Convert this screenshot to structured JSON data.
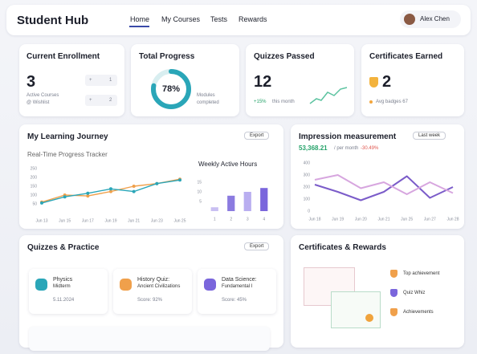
{
  "header": {
    "title": "Student Hub",
    "nav": [
      "Home",
      "My Courses",
      "Tests",
      "Rewards"
    ],
    "user": "Alex Chen"
  },
  "stats": {
    "enrollment": {
      "title": "Current Enrollment",
      "value": 3,
      "caption": [
        "Active Courses",
        "@ Wishlist"
      ],
      "badges": [
        {
          "sign": "+",
          "value": 1
        },
        {
          "sign": "+",
          "value": 2
        }
      ]
    },
    "progress": {
      "title": "Total Progress",
      "value": 78,
      "label": "78%",
      "caption": [
        "Modules",
        "completed"
      ]
    },
    "quizzes": {
      "title": "Quizzes Passed",
      "value": 12,
      "change": "+15%",
      "caption": "this month"
    },
    "certificates": {
      "title": "Certificates Earned",
      "value": 2,
      "caption": "Avg badges 67"
    }
  },
  "learning": {
    "title": "My Learning Journey",
    "button": "Export"
  },
  "impression": {
    "title": "Impression measurement",
    "total": "53,368.21",
    "period": "/ per month",
    "change": "-30.49%",
    "button": "Last week"
  },
  "quizzes": {
    "title": "Quizzes & Practice",
    "button": "Export",
    "items": [
      {
        "title": [
          "Physics",
          "Midterm"
        ],
        "detail": "5.11.2024"
      },
      {
        "title": [
          "History Quiz:",
          "Ancient Civilizations"
        ],
        "detail": "Score: 92%"
      },
      {
        "title": [
          "Data Science:",
          "Fundamental I"
        ],
        "detail": "Score: 45%"
      }
    ]
  },
  "rewards": {
    "title": "Certificates & Rewards",
    "items": [
      "Top achievement",
      "Quiz Whiz",
      "Achievements"
    ]
  },
  "chart_data": [
    {
      "type": "line",
      "title": "Real-Time Progress Tracker",
      "categories": [
        "Jun 13",
        "Jun 15",
        "Jun 17",
        "Jun 19",
        "Jun 21",
        "Jun 23",
        "Jun 25"
      ],
      "series": [
        {
          "color": "#f0a04b",
          "values": [
            60,
            100,
            95,
            120,
            150,
            165,
            190
          ]
        },
        {
          "color": "#2aa6b8",
          "values": [
            55,
            90,
            110,
            135,
            120,
            165,
            185
          ]
        }
      ],
      "ylim": [
        0,
        250
      ],
      "yticks": [
        50,
        100,
        150,
        200,
        250
      ]
    },
    {
      "type": "bar",
      "title": "Weekly Active Hours",
      "categories": [
        "1",
        "2",
        "3",
        "4"
      ],
      "values": [
        2,
        8,
        10,
        12
      ],
      "colors": [
        "#c9bff2",
        "#8b7be0",
        "#b9aef0",
        "#7a66dc"
      ],
      "ylim": [
        0,
        15
      ],
      "yticks": [
        5,
        10,
        15
      ]
    },
    {
      "type": "line",
      "categories": [
        "Jun 18",
        "Jun 19",
        "Jun 20",
        "Jun 21",
        "Jun 25",
        "Jun 27",
        "Jun 28"
      ],
      "series": [
        {
          "color": "#7b5cc9",
          "values": [
            220,
            160,
            90,
            160,
            290,
            110,
            200
          ]
        },
        {
          "color": "#d7a6df",
          "values": [
            260,
            300,
            190,
            240,
            140,
            240,
            150
          ]
        }
      ],
      "ylim": [
        0,
        400
      ],
      "yticks": [
        0,
        100,
        200,
        300,
        400
      ]
    }
  ]
}
